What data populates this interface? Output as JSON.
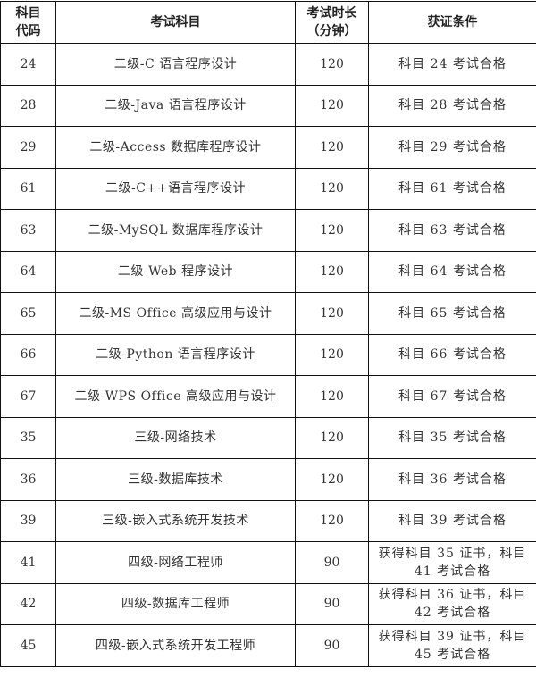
{
  "headers": {
    "code": [
      "科目",
      "代码"
    ],
    "subject": "考试科目",
    "duration": [
      "考试时长",
      "（分钟）"
    ],
    "condition": "获证条件"
  },
  "rows": [
    {
      "code": "24",
      "subject": "二级-C 语言程序设计",
      "duration": "120",
      "condition": "科目 24 考试合格"
    },
    {
      "code": "28",
      "subject": "二级-Java 语言程序设计",
      "duration": "120",
      "condition": "科目 28 考试合格"
    },
    {
      "code": "29",
      "subject": "二级-Access 数据库程序设计",
      "duration": "120",
      "condition": "科目 29 考试合格"
    },
    {
      "code": "61",
      "subject": "二级-C++语言程序设计",
      "duration": "120",
      "condition": "科目 61 考试合格"
    },
    {
      "code": "63",
      "subject": "二级-MySQL 数据库程序设计",
      "duration": "120",
      "condition": "科目 63 考试合格"
    },
    {
      "code": "64",
      "subject": "二级-Web 程序设计",
      "duration": "120",
      "condition": "科目 64 考试合格"
    },
    {
      "code": "65",
      "subject": "二级-MS Office 高级应用与设计",
      "duration": "120",
      "condition": "科目 65 考试合格"
    },
    {
      "code": "66",
      "subject": "二级-Python 语言程序设计",
      "duration": "120",
      "condition": "科目 66 考试合格"
    },
    {
      "code": "67",
      "subject": "二级-WPS Office 高级应用与设计",
      "duration": "120",
      "condition": "科目 67 考试合格"
    },
    {
      "code": "35",
      "subject": "三级-网络技术",
      "duration": "120",
      "condition": "科目 35 考试合格"
    },
    {
      "code": "36",
      "subject": "三级-数据库技术",
      "duration": "120",
      "condition": "科目 36 考试合格"
    },
    {
      "code": "39",
      "subject": "三级-嵌入式系统开发技术",
      "duration": "120",
      "condition": "科目 39 考试合格"
    },
    {
      "code": "41",
      "subject": "四级-网络工程师",
      "duration": "90",
      "condition": "获得科目 35 证书，科目 41 考试合格"
    },
    {
      "code": "42",
      "subject": "四级-数据库工程师",
      "duration": "90",
      "condition": "获得科目 36 证书，科目 42 考试合格"
    },
    {
      "code": "45",
      "subject": "四级-嵌入式系统开发工程师",
      "duration": "90",
      "condition": "获得科目 39 证书，科目 45 考试合格"
    }
  ]
}
